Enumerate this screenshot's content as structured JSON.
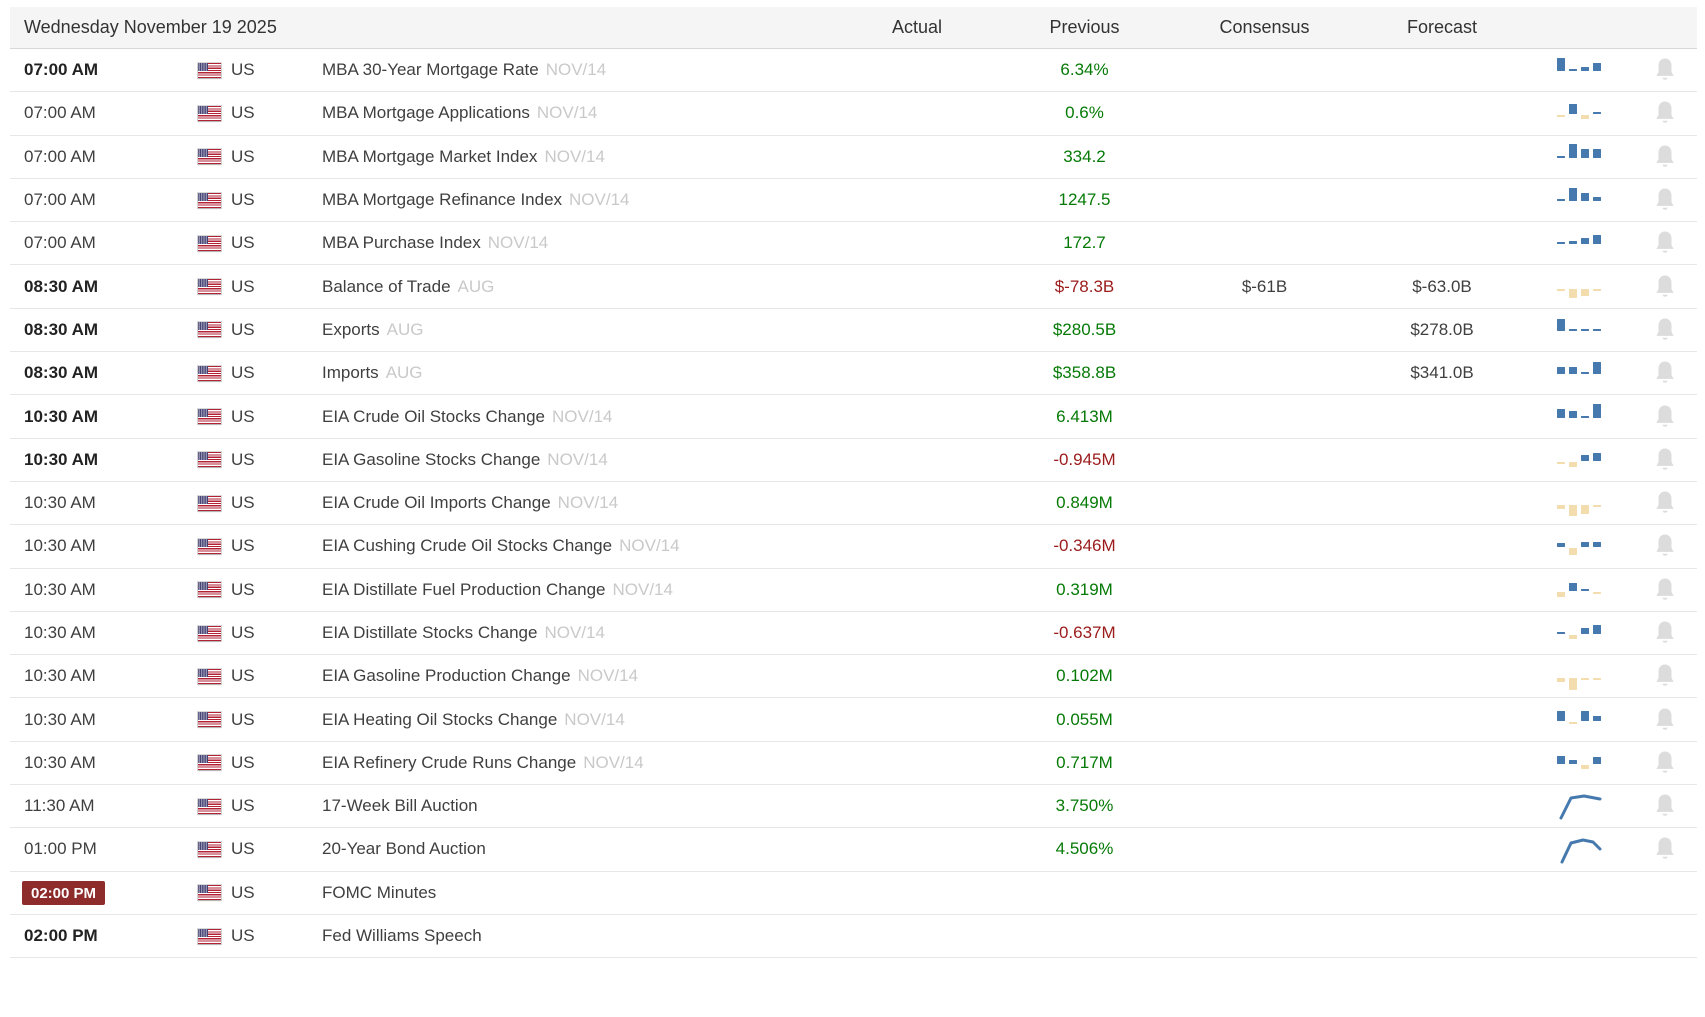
{
  "header": {
    "date_label": "Wednesday November 19 2025",
    "columns": [
      "Actual",
      "Previous",
      "Consensus",
      "Forecast"
    ]
  },
  "colors": {
    "positive": "#067a06",
    "negative": "#9b1b1b",
    "neutral": "#3f3f3f",
    "badge_red": "#8e2c2c",
    "bar_blue": "#4679ad",
    "bar_tan": "#f3ddae",
    "bell_gray": "#dcdcdc",
    "header_bg": "#f5f5f5",
    "row_border": "#e7e7e7",
    "ref_gray": "#c9c9c9"
  },
  "rows": [
    {
      "time": "07:00 AM",
      "bold": true,
      "badge": false,
      "country": "US",
      "event": "MBA 30-Year Mortgage Rate",
      "ref": "NOV/14",
      "actual": "",
      "previous": "6.34%",
      "pc": "pos",
      "consensus": "",
      "forecast": "",
      "bell": true,
      "chart": {
        "type": "bar",
        "values": [
          95,
          15,
          30,
          55
        ],
        "bar_colors": [
          "b",
          "b",
          "b",
          "b"
        ]
      }
    },
    {
      "time": "07:00 AM",
      "bold": false,
      "badge": false,
      "country": "US",
      "event": "MBA Mortgage Applications",
      "ref": "NOV/14",
      "actual": "",
      "previous": "0.6%",
      "pc": "pos",
      "consensus": "",
      "forecast": "",
      "bell": true,
      "chart": {
        "type": "bar",
        "values": [
          -6,
          75,
          -22,
          8
        ],
        "bar_colors": [
          "t",
          "b",
          "t",
          "b"
        ]
      }
    },
    {
      "time": "07:00 AM",
      "bold": false,
      "badge": false,
      "country": "US",
      "event": "MBA Mortgage Market Index",
      "ref": "NOV/14",
      "actual": "",
      "previous": "334.2",
      "pc": "pos",
      "consensus": "",
      "forecast": "",
      "bell": true,
      "chart": {
        "type": "bar",
        "values": [
          8,
          95,
          62,
          60
        ],
        "bar_colors": [
          "b",
          "b",
          "b",
          "b"
        ]
      }
    },
    {
      "time": "07:00 AM",
      "bold": false,
      "badge": false,
      "country": "US",
      "event": "MBA Mortgage Refinance Index",
      "ref": "NOV/14",
      "actual": "",
      "previous": "1247.5",
      "pc": "pos",
      "consensus": "",
      "forecast": "",
      "bell": true,
      "chart": {
        "type": "bar",
        "values": [
          8,
          95,
          60,
          28
        ],
        "bar_colors": [
          "b",
          "b",
          "b",
          "b"
        ]
      }
    },
    {
      "time": "07:00 AM",
      "bold": false,
      "badge": false,
      "country": "US",
      "event": "MBA Purchase Index",
      "ref": "NOV/14",
      "actual": "",
      "previous": "172.7",
      "pc": "pos",
      "consensus": "",
      "forecast": "",
      "bell": true,
      "chart": {
        "type": "bar",
        "values": [
          6,
          22,
          45,
          70
        ],
        "bar_colors": [
          "b",
          "b",
          "b",
          "b"
        ]
      }
    },
    {
      "time": "08:30 AM",
      "bold": true,
      "badge": false,
      "country": "US",
      "event": "Balance of Trade",
      "ref": "AUG",
      "actual": "",
      "previous": "$-78.3B",
      "pc": "neg",
      "consensus": "$-61B",
      "forecast": "$-63.0B",
      "bell": true,
      "chart": {
        "type": "bar",
        "values": [
          -18,
          -70,
          -55,
          -10
        ],
        "bar_colors": [
          "t",
          "t",
          "t",
          "t"
        ]
      }
    },
    {
      "time": "08:30 AM",
      "bold": true,
      "badge": false,
      "country": "US",
      "event": "Exports",
      "ref": "AUG",
      "actual": "",
      "previous": "$280.5B",
      "pc": "pos",
      "consensus": "",
      "forecast": "$278.0B",
      "bell": true,
      "chart": {
        "type": "bar",
        "values": [
          85,
          5,
          5,
          12
        ],
        "bar_colors": [
          "b",
          "b",
          "b",
          "b"
        ]
      }
    },
    {
      "time": "08:30 AM",
      "bold": true,
      "badge": false,
      "country": "US",
      "event": "Imports",
      "ref": "AUG",
      "actual": "",
      "previous": "$358.8B",
      "pc": "pos",
      "consensus": "",
      "forecast": "$341.0B",
      "bell": true,
      "chart": {
        "type": "bar",
        "values": [
          55,
          50,
          10,
          90
        ],
        "bar_colors": [
          "b",
          "b",
          "b",
          "b"
        ]
      }
    },
    {
      "time": "10:30 AM",
      "bold": true,
      "badge": false,
      "country": "US",
      "event": "EIA Crude Oil Stocks Change",
      "ref": "NOV/14",
      "actual": "",
      "previous": "6.413M",
      "pc": "pos",
      "consensus": "",
      "forecast": "",
      "bell": true,
      "chart": {
        "type": "bar",
        "values": [
          60,
          50,
          10,
          95
        ],
        "bar_colors": [
          "b",
          "b",
          "b",
          "b"
        ]
      }
    },
    {
      "time": "10:30 AM",
      "bold": true,
      "badge": false,
      "country": "US",
      "event": "EIA Gasoline Stocks Change",
      "ref": "NOV/14",
      "actual": "",
      "previous": "-0.945M",
      "pc": "neg",
      "consensus": "",
      "forecast": "",
      "bell": true,
      "chart": {
        "type": "bar",
        "values": [
          -8,
          -40,
          38,
          55
        ],
        "bar_colors": [
          "t",
          "t",
          "b",
          "b"
        ]
      }
    },
    {
      "time": "10:30 AM",
      "bold": false,
      "badge": false,
      "country": "US",
      "event": "EIA Crude Oil Imports Change",
      "ref": "NOV/14",
      "actual": "",
      "previous": "0.849M",
      "pc": "pos",
      "consensus": "",
      "forecast": "",
      "bell": true,
      "chart": {
        "type": "bar",
        "values": [
          -25,
          -80,
          -65,
          -6
        ],
        "bar_colors": [
          "t",
          "t",
          "t",
          "t"
        ]
      }
    },
    {
      "time": "10:30 AM",
      "bold": false,
      "badge": false,
      "country": "US",
      "event": "EIA Cushing Crude Oil Stocks Change",
      "ref": "NOV/14",
      "actual": "",
      "previous": "-0.346M",
      "pc": "neg",
      "consensus": "",
      "forecast": "",
      "bell": true,
      "chart": {
        "type": "bar",
        "values": [
          30,
          -45,
          40,
          40
        ],
        "bar_colors": [
          "b",
          "t",
          "b",
          "b"
        ]
      }
    },
    {
      "time": "10:30 AM",
      "bold": false,
      "badge": false,
      "country": "US",
      "event": "EIA Distillate Fuel Production Change",
      "ref": "NOV/14",
      "actual": "",
      "previous": "0.319M",
      "pc": "pos",
      "consensus": "",
      "forecast": "",
      "bell": true,
      "chart": {
        "type": "bar",
        "values": [
          -35,
          55,
          12,
          -15
        ],
        "bar_colors": [
          "t",
          "b",
          "b",
          "t"
        ]
      }
    },
    {
      "time": "10:30 AM",
      "bold": false,
      "badge": false,
      "country": "US",
      "event": "EIA Distillate Stocks Change",
      "ref": "NOV/14",
      "actual": "",
      "previous": "-0.637M",
      "pc": "neg",
      "consensus": "",
      "forecast": "",
      "bell": true,
      "chart": {
        "type": "bar",
        "values": [
          6,
          -30,
          40,
          65
        ],
        "bar_colors": [
          "b",
          "t",
          "b",
          "b"
        ]
      }
    },
    {
      "time": "10:30 AM",
      "bold": false,
      "badge": false,
      "country": "US",
      "event": "EIA Gasoline Production Change",
      "ref": "NOV/14",
      "actual": "",
      "previous": "0.102M",
      "pc": "pos",
      "consensus": "",
      "forecast": "",
      "bell": true,
      "chart": {
        "type": "bar",
        "values": [
          -28,
          -85,
          -6,
          -6
        ],
        "bar_colors": [
          "t",
          "t",
          "t",
          "t"
        ]
      }
    },
    {
      "time": "10:30 AM",
      "bold": false,
      "badge": false,
      "country": "US",
      "event": "EIA Heating Oil Stocks Change",
      "ref": "NOV/14",
      "actual": "",
      "previous": "0.055M",
      "pc": "pos",
      "consensus": "",
      "forecast": "",
      "bell": true,
      "chart": {
        "type": "bar",
        "values": [
          70,
          -12,
          68,
          32
        ],
        "bar_colors": [
          "b",
          "t",
          "b",
          "b"
        ]
      }
    },
    {
      "time": "10:30 AM",
      "bold": false,
      "badge": false,
      "country": "US",
      "event": "EIA Refinery Crude Runs Change",
      "ref": "NOV/14",
      "actual": "",
      "previous": "0.717M",
      "pc": "pos",
      "consensus": "",
      "forecast": "",
      "bell": true,
      "chart": {
        "type": "bar",
        "values": [
          55,
          30,
          -28,
          48
        ],
        "bar_colors": [
          "b",
          "b",
          "t",
          "b"
        ]
      }
    },
    {
      "time": "11:30 AM",
      "bold": false,
      "badge": false,
      "country": "US",
      "event": "17-Week Bill Auction",
      "ref": "",
      "actual": "",
      "previous": "3.750%",
      "pc": "pos",
      "consensus": "",
      "forecast": "",
      "bell": true,
      "chart": {
        "type": "line",
        "points": [
          [
            4,
            27
          ],
          [
            14,
            7
          ],
          [
            27,
            5
          ],
          [
            43,
            8
          ]
        ]
      }
    },
    {
      "time": "01:00 PM",
      "bold": false,
      "badge": false,
      "country": "US",
      "event": "20-Year Bond Auction",
      "ref": "",
      "actual": "",
      "previous": "4.506%",
      "pc": "pos",
      "consensus": "",
      "forecast": "",
      "bell": true,
      "chart": {
        "type": "line",
        "points": [
          [
            5,
            28
          ],
          [
            14,
            9
          ],
          [
            26,
            6
          ],
          [
            36,
            8
          ],
          [
            43,
            15
          ]
        ]
      }
    },
    {
      "time": "02:00 PM",
      "bold": true,
      "badge": true,
      "country": "US",
      "event": "FOMC Minutes",
      "ref": "",
      "actual": "",
      "previous": "",
      "pc": "neu",
      "consensus": "",
      "forecast": "",
      "bell": false,
      "chart": null
    },
    {
      "time": "02:00 PM",
      "bold": true,
      "badge": false,
      "country": "US",
      "event": "Fed Williams Speech",
      "ref": "",
      "actual": "",
      "previous": "",
      "pc": "neu",
      "consensus": "",
      "forecast": "",
      "bell": false,
      "chart": null
    }
  ]
}
